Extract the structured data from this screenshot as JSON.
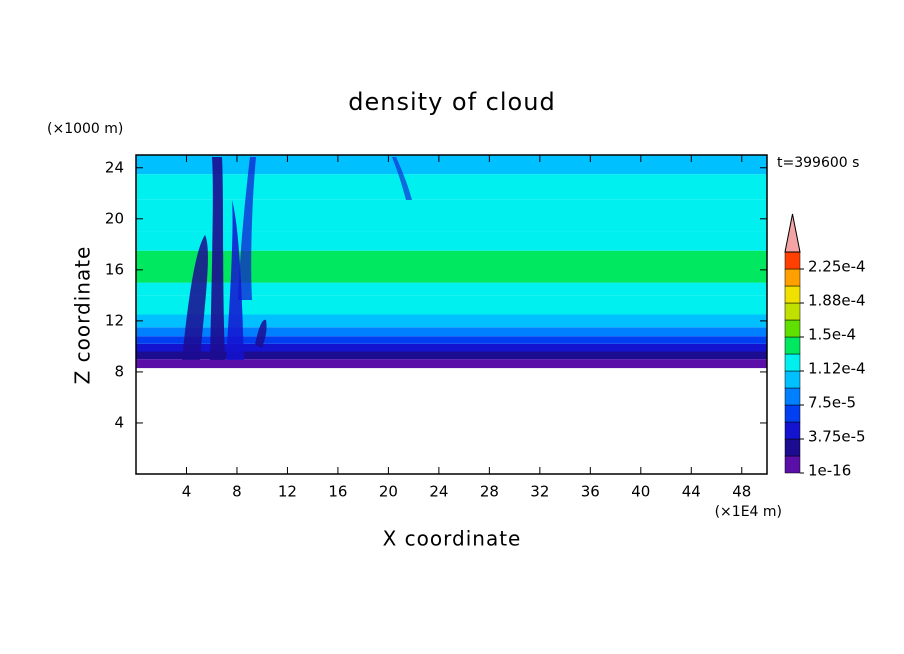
{
  "chart_data": {
    "type": "contour",
    "title": "density of cloud",
    "time_label": "t=399600 s",
    "xlabel": "X coordinate",
    "ylabel": "Z coordinate",
    "x_unit": "(×1E4 m)",
    "y_unit": "(×1000 m)",
    "xlim": [
      0,
      50
    ],
    "ylim": [
      0,
      25
    ],
    "xticks": [
      4,
      8,
      12,
      16,
      20,
      24,
      28,
      32,
      36,
      40,
      44,
      48
    ],
    "yticks": [
      4,
      8,
      12,
      16,
      20,
      24
    ],
    "z": [
      8.3,
      9,
      9.6,
      10.2,
      10.8,
      11.5,
      12.5,
      14,
      15,
      17.5,
      19,
      21.5,
      23.5,
      25
    ],
    "density": [
      1e-05,
      2.8e-05,
      4.6e-05,
      6.5e-05,
      8.5e-05,
      0.0001,
      0.00012,
      0.00013,
      0.00014,
      0.00013,
      0.00012,
      0.000115,
      0.0001
    ],
    "levels": [
      1e-16,
      1.875e-05,
      3.75e-05,
      5.625e-05,
      7.5e-05,
      9.375e-05,
      0.0001125,
      0.00013125,
      0.00015,
      0.00016875,
      0.0001875,
      0.00020625,
      0.000225,
      0.00024375
    ],
    "colors": [
      "#5a10a8",
      "#1c0c90",
      "#1414d0",
      "#0040f0",
      "#0080ff",
      "#00c0ff",
      "#00f0f0",
      "#00e860",
      "#60e000",
      "#c0e000",
      "#f0e000",
      "#ffa000",
      "#ff4000"
    ],
    "extend_color": "#f4a4a4",
    "colorbar_ticks": [
      {
        "value": 1e-16,
        "label": "1e-16"
      },
      {
        "value": 3.75e-05,
        "label": "3.75e-5"
      },
      {
        "value": 7.5e-05,
        "label": "7.5e-5"
      },
      {
        "value": 0.0001125,
        "label": "1.12e-4"
      },
      {
        "value": 0.00015,
        "label": "1.5e-4"
      },
      {
        "value": 0.0001875,
        "label": "1.88e-4"
      },
      {
        "value": 0.000225,
        "label": "2.25e-4"
      }
    ]
  }
}
